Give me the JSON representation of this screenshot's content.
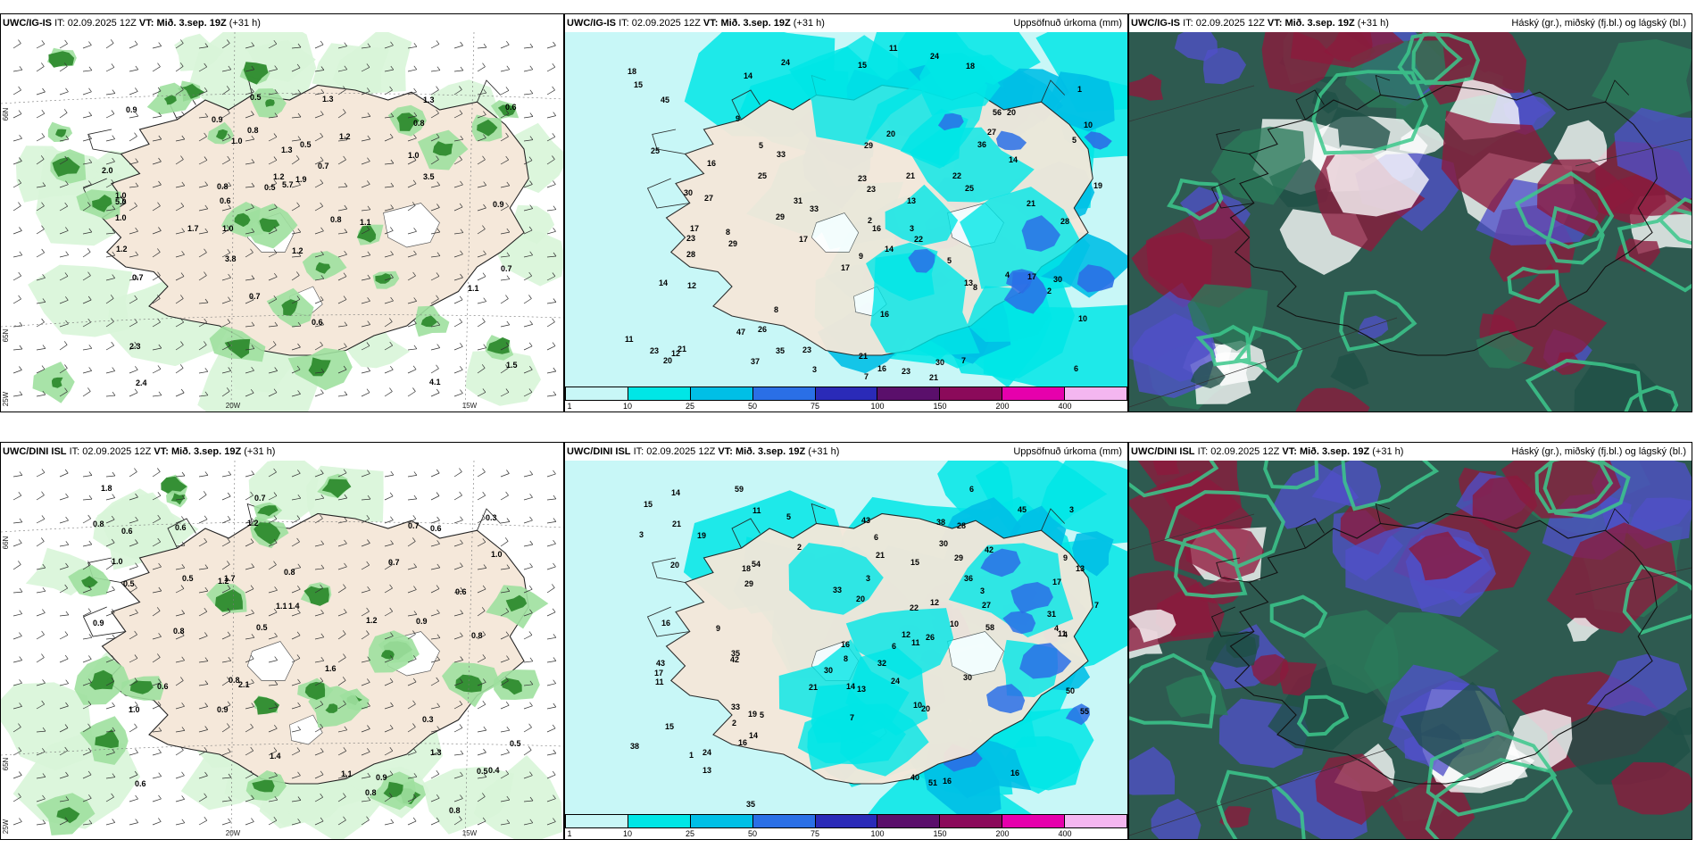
{
  "palette": {
    "land": "#f5e8da",
    "sea_white": "#ffffff",
    "precip": [
      "#d8f5d8",
      "#9ee09e",
      "#5cc45c",
      "#2e8b2e",
      "#0e4e0e"
    ],
    "accum_bands": [
      "#c8f7f7",
      "#00e6e6",
      "#00bfe6",
      "#2a6fe6",
      "#2a2ab8",
      "#5a0f6b",
      "#8b0a5a",
      "#e600ac",
      "#f4b6f0"
    ],
    "cloud_high": "#3cc88c",
    "cloud_mid": "#8c1a3c",
    "cloud_low": "#5050c8",
    "cloud_dark": "#2e5a50"
  },
  "panels": [
    {
      "key": "top-left",
      "row": 0,
      "col": 0,
      "kind": "precip",
      "model": "UWC/IG-IS",
      "it_label": "IT:",
      "it_value": "02.09.2025 12Z",
      "vt_label": "VT:",
      "vt_value": "Mið. 3.sep. 19Z",
      "lead": "(+31 h)",
      "right_title": "",
      "ticks": [
        "66N",
        "65N",
        "25W",
        "20W",
        "15W"
      ],
      "labels": [
        "0.7",
        "0.8",
        "0.9",
        "1.0",
        "1.1",
        "1.2",
        "1.3",
        "0.6",
        "0.5",
        "4.1",
        "3.5",
        "2.4",
        "5.7",
        "3.8",
        "2.0",
        "0.7",
        "1.0",
        "0.6",
        "0.9",
        "1.0",
        "1.1",
        "0.8",
        "0.7",
        "1.2",
        "0.5",
        "1.7",
        "1.3",
        "1.0",
        "0.8",
        "0.7",
        "1.5",
        "1.2",
        "1.0",
        "0.8",
        "5.0",
        "1.9",
        "0.5",
        "1.3",
        "2.3",
        "1.2",
        "0.9",
        "0.6"
      ]
    },
    {
      "key": "top-mid",
      "row": 0,
      "col": 1,
      "kind": "accum",
      "model": "UWC/IG-IS",
      "it_label": "IT:",
      "it_value": "02.09.2025 12Z",
      "vt_label": "VT:",
      "vt_value": "Mið. 3.sep. 19Z",
      "lead": "(+31 h)",
      "right_title": "Uppsöfnuð úrkoma (mm)",
      "colorbar": [
        "1",
        "10",
        "25",
        "50",
        "75",
        "100",
        "150",
        "200",
        "400"
      ],
      "labels": [
        "11",
        "15",
        "23",
        "7",
        "8",
        "4",
        "33",
        "28",
        "19",
        "20",
        "22",
        "23",
        "37",
        "36",
        "29",
        "23",
        "21",
        "17",
        "23",
        "24",
        "16",
        "10",
        "14",
        "27",
        "25",
        "25",
        "29",
        "23",
        "21",
        "30",
        "14",
        "24",
        "21",
        "26",
        "17",
        "8",
        "5",
        "17",
        "16",
        "25",
        "29",
        "33",
        "56",
        "35",
        "30",
        "28",
        "47",
        "45",
        "21",
        "13",
        "23",
        "27",
        "18",
        "10",
        "2",
        "6",
        "20",
        "21",
        "3",
        "22",
        "9",
        "15",
        "7",
        "14",
        "11",
        "5",
        "12",
        "16",
        "13",
        "8",
        "14",
        "17",
        "18",
        "20",
        "9",
        "5",
        "31",
        "30",
        "2",
        "3",
        "1",
        "12",
        "16"
      ]
    },
    {
      "key": "top-right",
      "row": 0,
      "col": 2,
      "kind": "cloud",
      "model": "UWC/IG-IS",
      "it_label": "IT:",
      "it_value": "02.09.2025 12Z",
      "vt_label": "VT:",
      "vt_value": "Mið. 3.sep. 19Z",
      "lead": "(+31 h)",
      "right_title": "Háský (gr.), miðský (fj.bl.) og lágský (bl.)"
    },
    {
      "key": "bot-left",
      "row": 1,
      "col": 0,
      "kind": "precip",
      "model": "UWC/DINI ISL",
      "it_label": "IT:",
      "it_value": "02.09.2025 12Z",
      "vt_label": "VT:",
      "vt_value": "Mið. 3.sep. 19Z",
      "lead": "(+31 h)",
      "right_title": "",
      "ticks": [
        "66N",
        "65N",
        "25W",
        "20W",
        "15W"
      ],
      "labels": [
        "1.0",
        "0.6",
        "0.8",
        "0.7",
        "0.5",
        "1.2",
        "0.6",
        "0.9",
        "0.7",
        "0.8",
        "0.6",
        "1.0",
        "1.3",
        "0.9",
        "0.5",
        "0.6",
        "0.8",
        "1.1",
        "0.9",
        "1.8",
        "1.2",
        "0.9",
        "0.8",
        "1.4",
        "0.7",
        "0.8",
        "0.5",
        "0.3",
        "0.6",
        "1.4",
        "0.8",
        "1.2",
        "0.5",
        "0.4",
        "0.3",
        "0.6",
        "1.0",
        "1.6",
        "0.8",
        "1.1",
        "1.7",
        "0.5",
        "2.1"
      ]
    },
    {
      "key": "bot-mid",
      "row": 1,
      "col": 1,
      "kind": "accum",
      "model": "UWC/DINI ISL",
      "it_label": "IT:",
      "it_value": "02.09.2025 12Z",
      "vt_label": "VT:",
      "vt_value": "Mið. 3.sep. 19Z",
      "lead": "(+31 h)",
      "right_title": "Uppsöfnuð úrkoma (mm)",
      "colorbar": [
        "1",
        "10",
        "25",
        "50",
        "75",
        "100",
        "150",
        "200",
        "400"
      ],
      "labels": [
        "9",
        "8",
        "6",
        "3",
        "4",
        "11",
        "11",
        "7",
        "9",
        "14",
        "14",
        "16",
        "18",
        "35",
        "38",
        "17",
        "15",
        "12",
        "21",
        "21",
        "29",
        "20",
        "16",
        "10",
        "14",
        "20",
        "31",
        "30",
        "42",
        "26",
        "12",
        "22",
        "35",
        "33",
        "43",
        "20",
        "16",
        "7",
        "13",
        "36",
        "30",
        "58",
        "54",
        "33",
        "59",
        "45",
        "38",
        "19",
        "28",
        "51",
        "24",
        "2",
        "6",
        "5",
        "42",
        "16",
        "55",
        "40",
        "32",
        "43",
        "21",
        "50",
        "29",
        "15",
        "27",
        "24",
        "30",
        "5",
        "3",
        "4",
        "3",
        "1",
        "2",
        "13",
        "16",
        "19",
        "17",
        "11",
        "10",
        "11",
        "13",
        "15",
        "3",
        "6"
      ]
    },
    {
      "key": "bot-right",
      "row": 1,
      "col": 2,
      "kind": "cloud",
      "model": "UWC/DINI ISL",
      "it_label": "IT:",
      "it_value": "02.09.2025 12Z",
      "vt_label": "VT:",
      "vt_value": "Mið. 3.sep. 19Z",
      "lead": "(+31 h)",
      "right_title": "Háský (gr.), miðský (fj.bl.) og lágský (bl.)"
    }
  ]
}
